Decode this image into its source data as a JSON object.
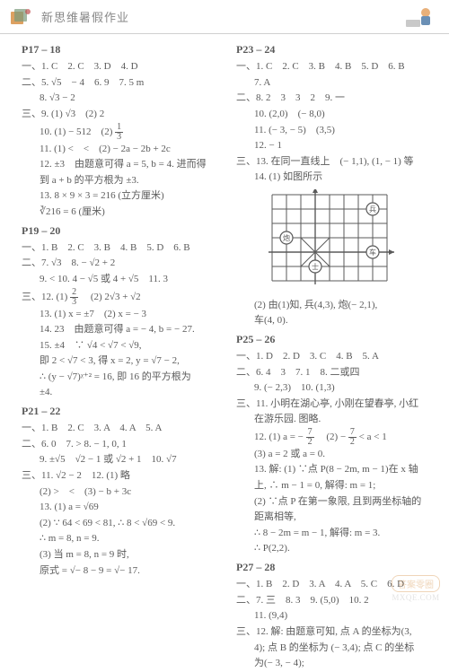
{
  "header": {
    "title": "新思维暑假作业"
  },
  "left": {
    "p17_18": {
      "heading": "P17 – 18",
      "l1": "一、1. C　2. C　3. D　4. D",
      "l2": "二、5. √5　− 4　6. 9　7. 5 m",
      "l3": "8. √3 − 2",
      "l4": "三、9. (1) √3　(2) 2",
      "l5_a": "10. (1) − 512　(2) ",
      "frac10": {
        "num": "1",
        "den": "3"
      },
      "l6": "11. (1) <　<　(2) − 2a − 2b + 2c",
      "l7": "12. ±3　由题意可得 a = 5, b = 4. 进而得",
      "l8": "到 a + b 的平方根为 ±3.",
      "l9": "13. 8 × 9 × 3 = 216 (立方厘米)",
      "l10": "∛216 = 6 (厘米)"
    },
    "p19_20": {
      "heading": "P19 – 20",
      "l1": "一、1. B　2. C　3. B　4. B　5. D　6. B",
      "l2": "二、7. √3　8. − √2 + 2",
      "l3": "9. < 10. 4 − √5 或 4 + √5　11. 3",
      "l4_a": "三、12. (1) ",
      "frac12a": {
        "num": "2",
        "den": "3"
      },
      "l4_b": "　(2) 2√3 + √2",
      "l5": "13. (1) x = ±7　(2) x = − 3",
      "l6": "14. 23　由题意可得 a = − 4, b = − 27.",
      "l7": "15. ±4　∵ √4 < √7 < √9,",
      "l8": "即 2 < √7 < 3, 得 x = 2, y = √7 − 2,",
      "l9": "∴ (y − √7)ᵡ⁺² = 16, 即 16 的平方根为",
      "l10": "±4."
    },
    "p21_22": {
      "heading": "P21 – 22",
      "l1": "一、1. B　2. C　3. A　4. A　5. A",
      "l2": "二、6. 0　7. > 8. − 1, 0, 1",
      "l3": "9. ±√5　√2 − 1 或 √2 + 1　10. √7",
      "l4": "三、11. √2 − 2　12. (1) 略",
      "l5": "(2) >　<　(3) − b + 3c",
      "l6": "13. (1) a = √69",
      "l7": "(2) ∵ 64 < 69 < 81, ∴ 8 < √69 < 9.",
      "l8": "∴ m = 8, n = 9.",
      "l9": "(3) 当 m = 8, n = 9 时,",
      "l10": "原式 = √− 8 − 9 = √− 17."
    }
  },
  "right": {
    "p23_24": {
      "heading": "P23 – 24",
      "l1": "一、1. C　2. C　3. B　4. B　5. D　6. B",
      "l2": "7. A",
      "l3": "二、8. 2　3　3　2　9. 一",
      "l4": "10. (2,0)　(− 8,0)",
      "l5": "11. (− 3, − 5)　(3,5)",
      "l6": "12. − 1",
      "l7": "三、13. 在同一直线上　(− 1,1), (1, − 1) 等",
      "l8": "14. (1) 如图所示",
      "grid": {
        "cols": 8,
        "rows": 6,
        "cell": 16,
        "axis_origin": {
          "col": 3,
          "row": 4
        },
        "bing": {
          "col": 7,
          "row": 1,
          "label": "兵"
        },
        "pao": {
          "col": 1,
          "row": 3,
          "label": "炮"
        },
        "shi": {
          "col": 3,
          "row": 5,
          "label": "士"
        },
        "che": {
          "col": 7,
          "row": 4,
          "label": "车"
        },
        "circle_stroke": "#5a5a5a",
        "grid_stroke": "#5a5a5a"
      },
      "l9": "(2) 由(1)知, 兵(4,3), 炮(− 2,1),",
      "l10": "车(4, 0)."
    },
    "p25_26": {
      "heading": "P25 – 26",
      "l1": "一、1. D　2. D　3. C　4. B　5. A",
      "l2": "二、6. 4　3　7. 1　8. 二或四",
      "l3": "9. (− 2,3)　10. (1,3)",
      "l4": "三、11. 小明在湖心亭, 小刚在望春亭, 小红",
      "l5": "在游乐园. 图略.",
      "l6_a": "12. (1) a = − ",
      "frac12a": {
        "num": "7",
        "den": "2"
      },
      "l6_b": "　(2) − ",
      "frac12b": {
        "num": "7",
        "den": "2"
      },
      "l6_c": " < a < 1",
      "l7": "(3) a = 2 或 a = 0.",
      "l8": "13. 解: (1) ∵点 P(8 − 2m, m − 1)在 x 轴",
      "l9": "上, ∴ m − 1 = 0, 解得: m = 1;",
      "l10": "(2) ∵点 P 在第一象限, 且到两坐标轴的",
      "l11": "距离相等,",
      "l12": "∴ 8 − 2m = m − 1, 解得: m = 3.",
      "l13": "∴ P(2,2)."
    },
    "p27_28": {
      "heading": "P27 – 28",
      "l1": "一、1. B　2. D　3. A　4. A　5. C　6. D",
      "l2": "二、7. 三　8. 3　9. (5,0)　10. 2",
      "l3": "11. (9,4)",
      "l4": "三、12. 解: 由题意可知, 点 A 的坐标为(3,",
      "l5": "4); 点 B 的坐标为 (− 3,4); 点 C 的坐标",
      "l6": "为(− 3, − 4);"
    }
  },
  "watermark": {
    "badge": "答案零圈",
    "url": "MXQE.COM"
  },
  "colors": {
    "text": "#5a5a5a",
    "header_title": "#888888",
    "rule": "#d0d0d0",
    "icon_orange": "#d48a3a",
    "icon_blue": "#6a8fb5"
  }
}
